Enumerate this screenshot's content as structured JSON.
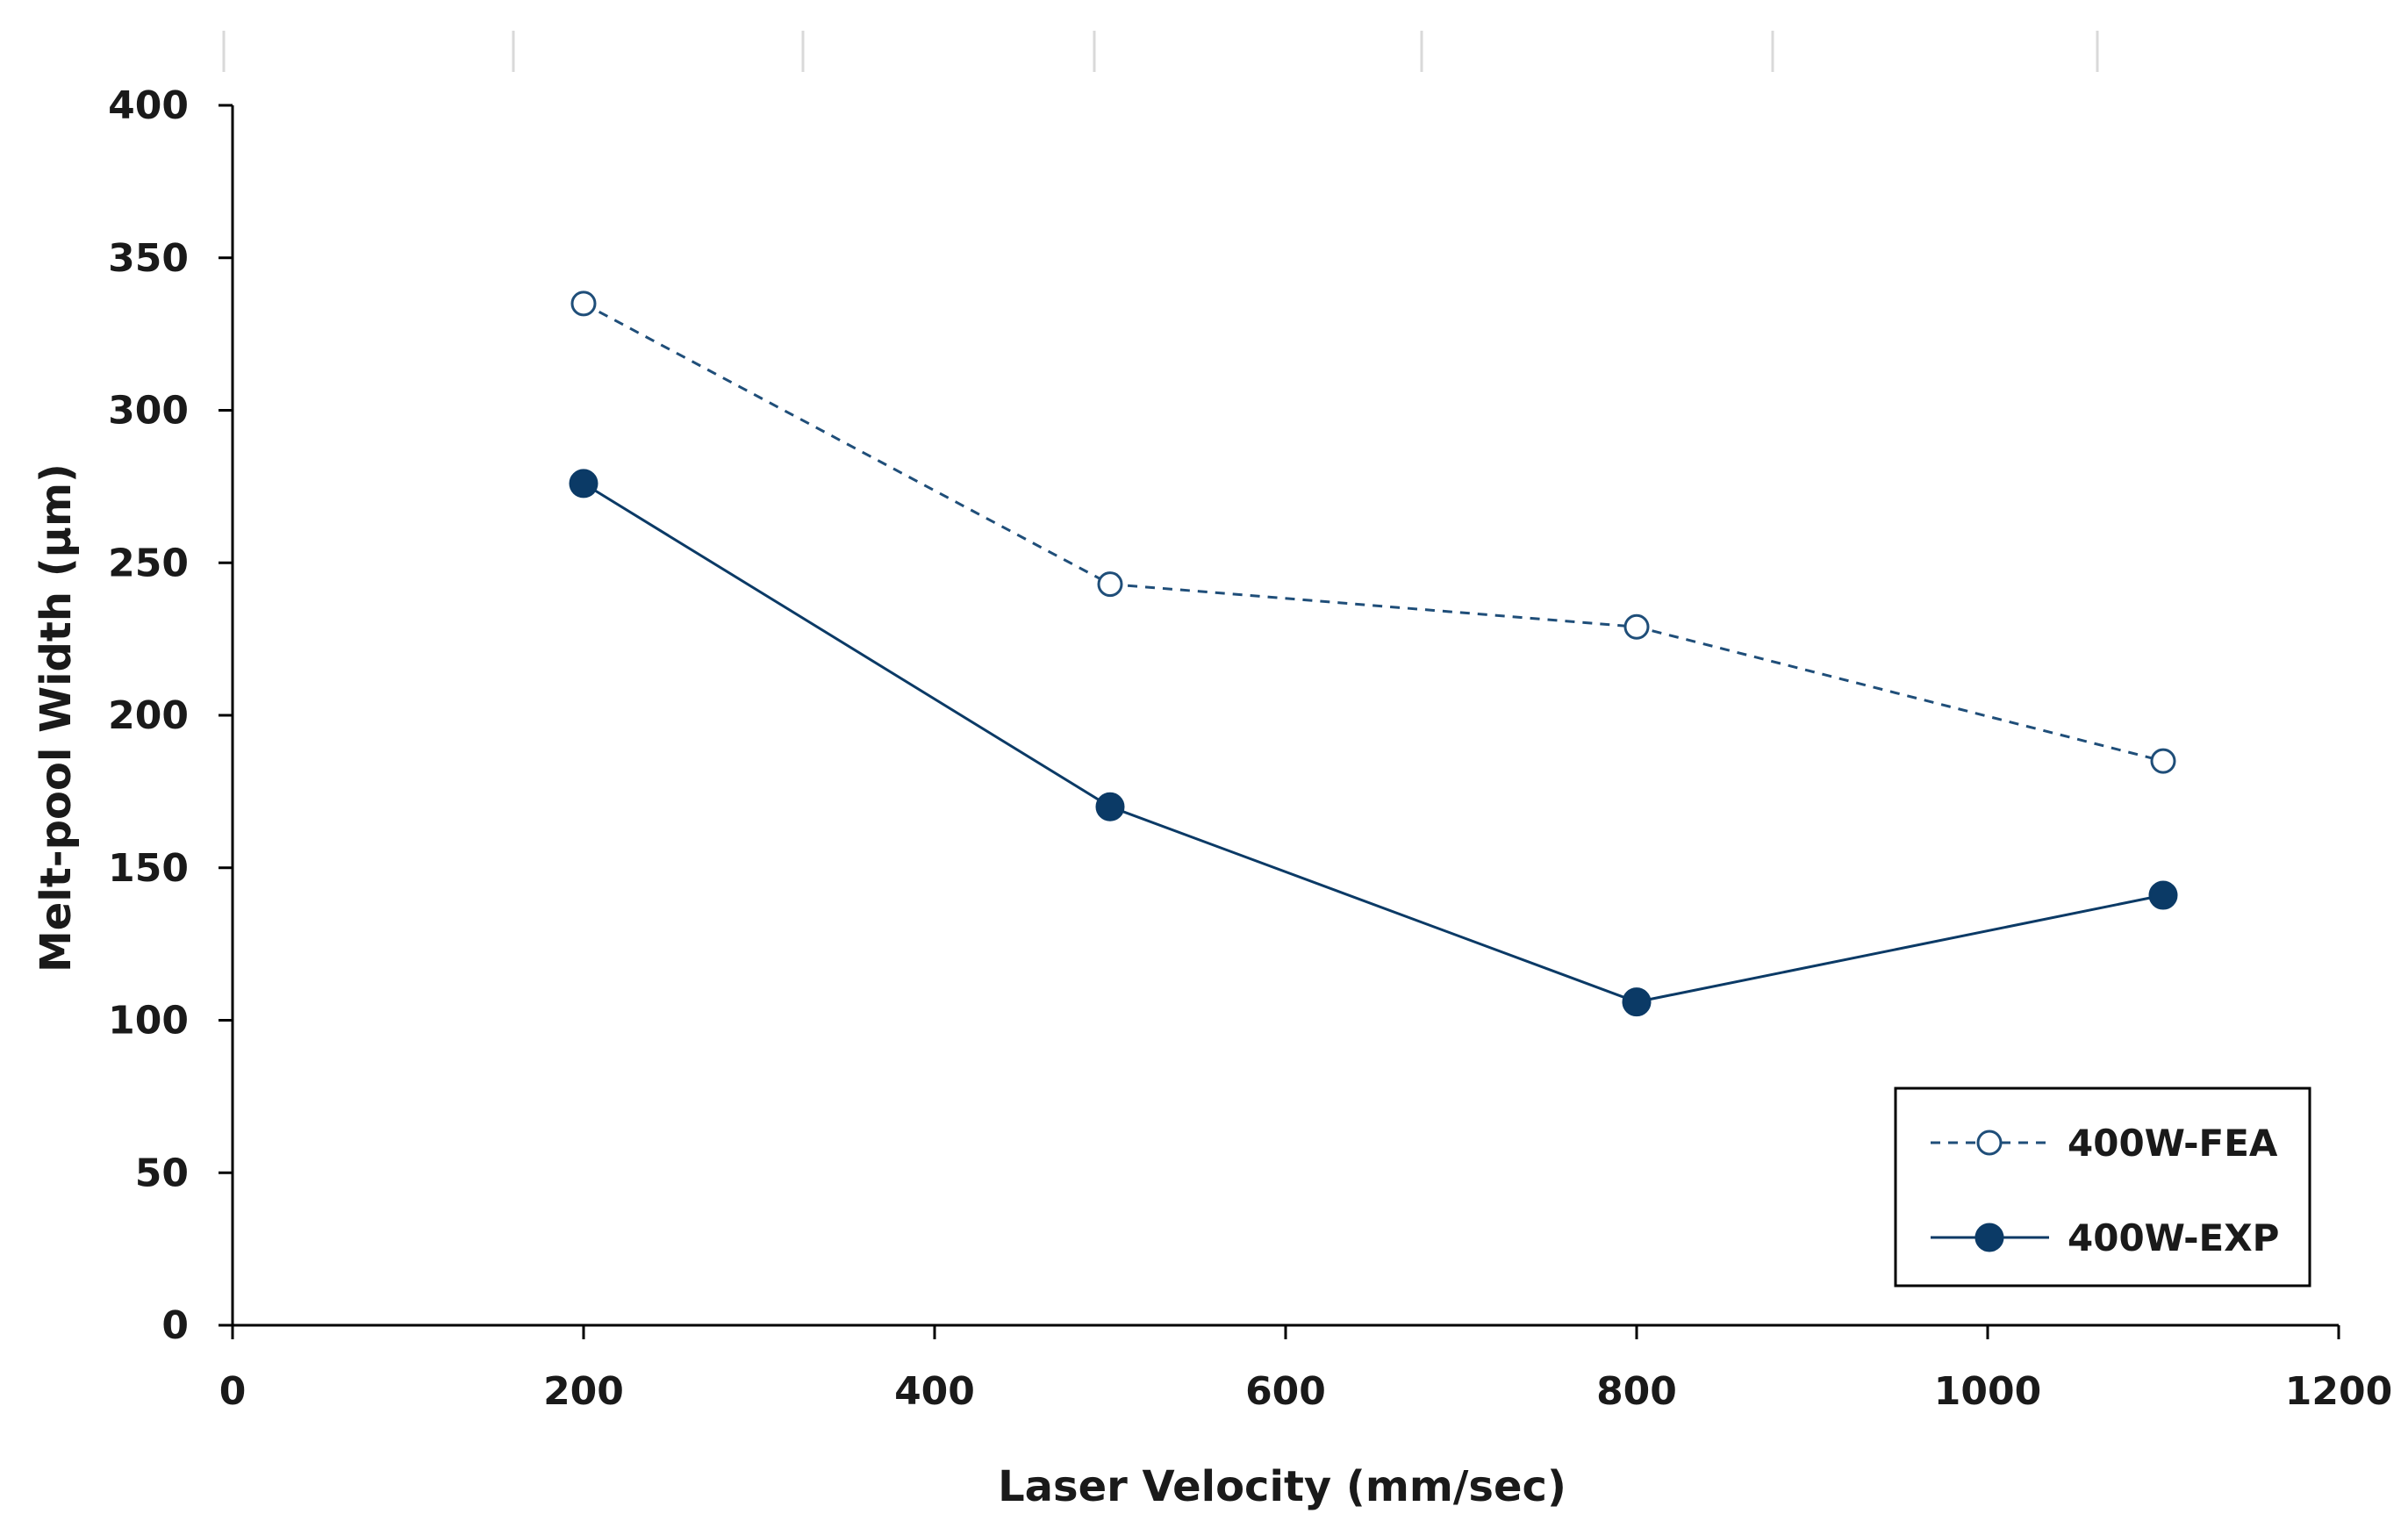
{
  "chart_data": {
    "type": "line",
    "title": "",
    "xlabel": "Laser Velocity (mm/sec)",
    "ylabel": "Melt-pool Width (µm)",
    "xlim": [
      0,
      1200
    ],
    "ylim": [
      0,
      400
    ],
    "xticks": [
      0,
      200,
      400,
      600,
      800,
      1000,
      1200
    ],
    "yticks": [
      0,
      50,
      100,
      150,
      200,
      250,
      300,
      350,
      400
    ],
    "grid": false,
    "legend_position": "bottom-right",
    "series": [
      {
        "name": "400W-FEA",
        "style": "dashed",
        "marker": "open-circle",
        "color": "#1f4e79",
        "x": [
          200,
          500,
          800,
          1100
        ],
        "y": [
          335,
          243,
          229,
          185
        ]
      },
      {
        "name": "400W-EXP",
        "style": "solid",
        "marker": "filled-circle",
        "color": "#0b3a66",
        "x": [
          200,
          500,
          800,
          1100
        ],
        "y": [
          276,
          170,
          106,
          141
        ]
      }
    ]
  }
}
